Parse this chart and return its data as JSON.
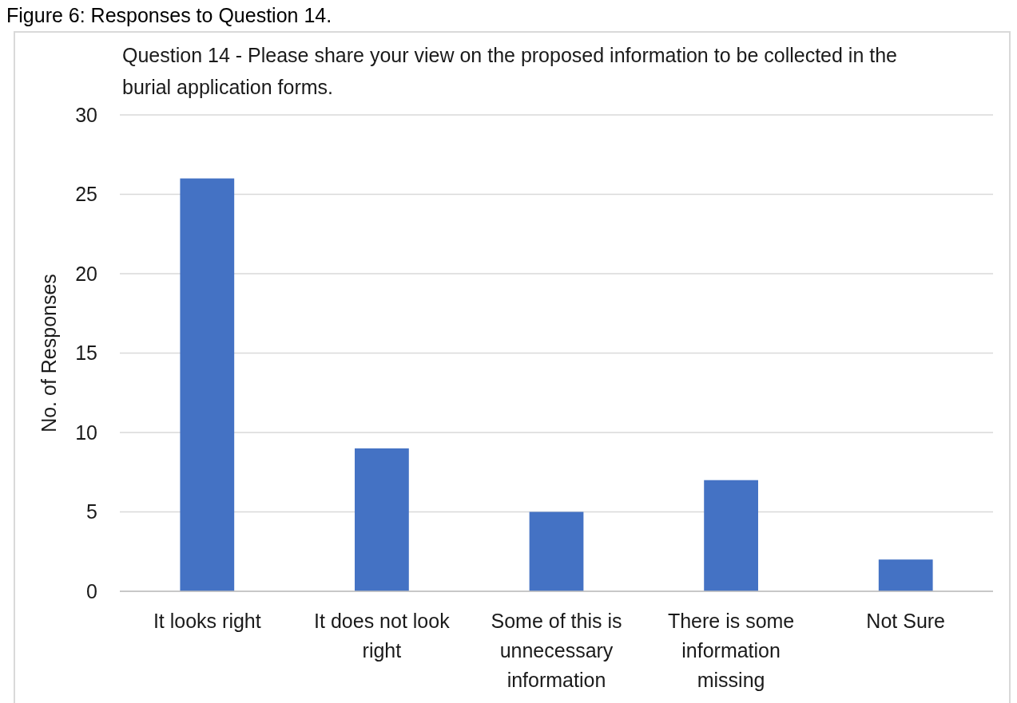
{
  "chart_data": {
    "type": "bar",
    "title": "Question 14 - Please share your view on the proposed information to be collected in the burial application forms.",
    "ylabel": "No. of Responses",
    "annotations": [
      "Figure 6: Responses to Question 14."
    ],
    "categories": [
      "It looks right",
      "It does not look right",
      "Some of this is unnecessary information",
      "There is some information missing",
      "Not Sure"
    ],
    "values": [
      26,
      9,
      5,
      7,
      2
    ],
    "color": "#4472c4",
    "ylim": [
      0,
      30
    ],
    "yticks": [
      0,
      5,
      10,
      15,
      20,
      25,
      30
    ],
    "grid": "y"
  }
}
